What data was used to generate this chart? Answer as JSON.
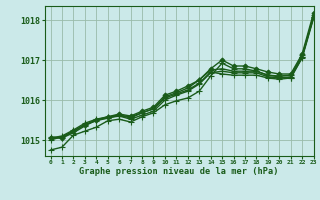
{
  "background_color": "#cbe9e9",
  "grid_color": "#99bbaa",
  "line_color": "#1a5c1a",
  "title": "Graphe pression niveau de la mer (hPa)",
  "xlim": [
    -0.5,
    23
  ],
  "ylim": [
    1014.6,
    1018.35
  ],
  "yticks": [
    1015,
    1016,
    1017,
    1018
  ],
  "xticks": [
    0,
    1,
    2,
    3,
    4,
    5,
    6,
    7,
    8,
    9,
    10,
    11,
    12,
    13,
    14,
    15,
    16,
    17,
    18,
    19,
    20,
    21,
    22,
    23
  ],
  "series": [
    {
      "y": [
        1014.75,
        1014.82,
        1015.12,
        1015.22,
        1015.32,
        1015.48,
        1015.52,
        1015.45,
        1015.58,
        1015.68,
        1015.88,
        1015.98,
        1016.05,
        1016.22,
        1016.6,
        1016.92,
        1016.78,
        1016.78,
        1016.72,
        1016.62,
        1016.58,
        1016.55,
        1017.08,
        1018.12
      ],
      "marker": "+",
      "lw": 1.0,
      "ms": 4
    },
    {
      "y": [
        1015.0,
        1015.08,
        1015.22,
        1015.38,
        1015.48,
        1015.55,
        1015.6,
        1015.52,
        1015.62,
        1015.72,
        1016.0,
        1016.12,
        1016.22,
        1016.4,
        1016.68,
        1016.72,
        1016.68,
        1016.68,
        1016.68,
        1016.58,
        1016.55,
        1016.58,
        1017.08,
        1018.08
      ],
      "marker": "+",
      "lw": 1.0,
      "ms": 4
    },
    {
      "y": [
        1015.05,
        1015.1,
        1015.25,
        1015.42,
        1015.52,
        1015.58,
        1015.62,
        1015.58,
        1015.68,
        1015.78,
        1016.08,
        1016.18,
        1016.3,
        1016.5,
        1016.75,
        1016.78,
        1016.72,
        1016.72,
        1016.72,
        1016.62,
        1016.6,
        1016.62,
        1017.12,
        1018.08
      ],
      "marker": "+",
      "lw": 1.0,
      "ms": 4
    },
    {
      "y": [
        1015.08,
        1015.05,
        1015.18,
        1015.35,
        1015.5,
        1015.55,
        1015.62,
        1015.55,
        1015.68,
        1015.78,
        1016.05,
        1016.15,
        1016.25,
        1016.42,
        1016.7,
        1016.65,
        1016.62,
        1016.62,
        1016.62,
        1016.55,
        1016.52,
        1016.55,
        1017.05,
        1018.05
      ],
      "marker": "+",
      "lw": 1.0,
      "ms": 4
    },
    {
      "y": [
        1015.05,
        1015.05,
        1015.22,
        1015.38,
        1015.5,
        1015.58,
        1015.65,
        1015.6,
        1015.72,
        1015.82,
        1016.12,
        1016.22,
        1016.35,
        1016.5,
        1016.78,
        1017.0,
        1016.85,
        1016.85,
        1016.78,
        1016.7,
        1016.65,
        1016.65,
        1017.15,
        1018.18
      ],
      "marker": "D",
      "lw": 1.0,
      "ms": 2.5
    }
  ]
}
